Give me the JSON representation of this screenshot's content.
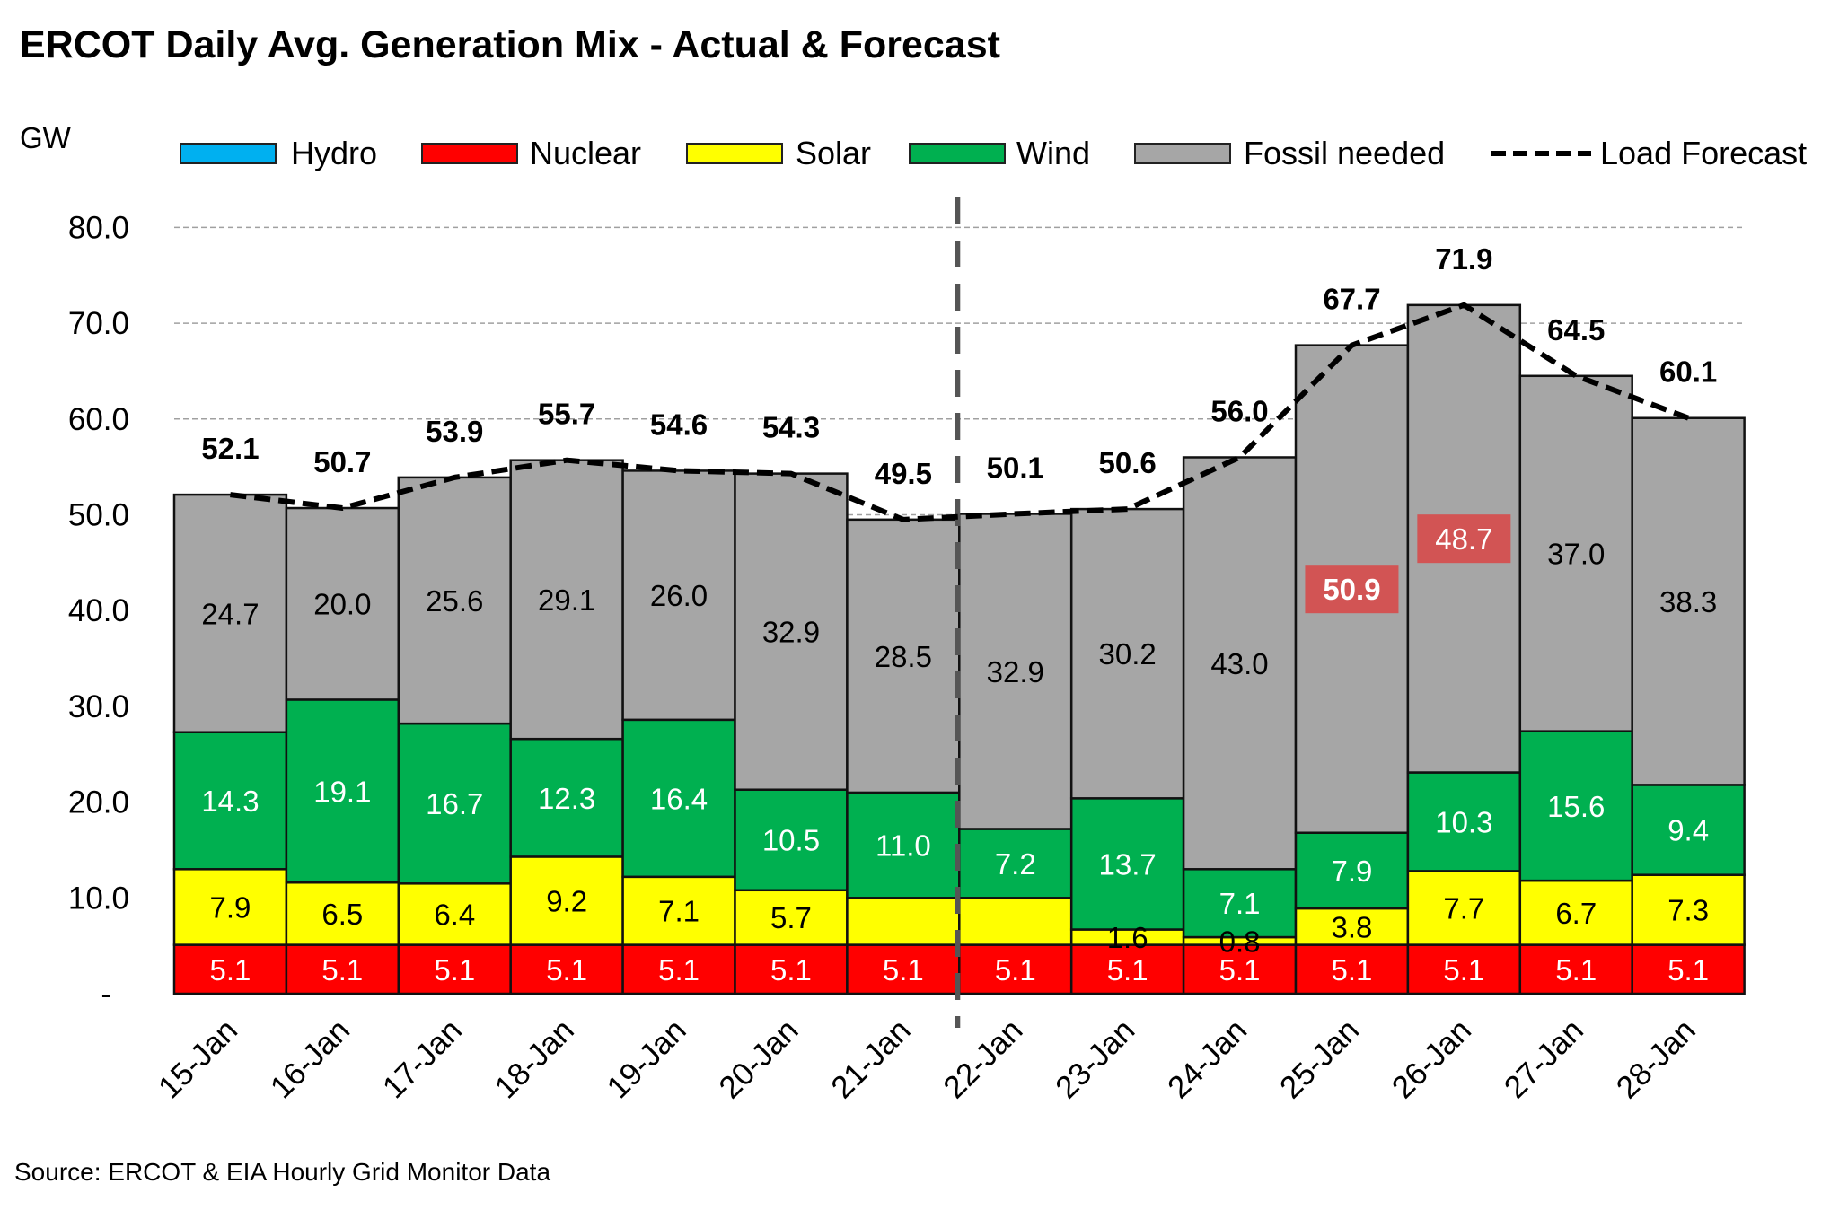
{
  "chart_data": {
    "type": "bar",
    "stacked": true,
    "title": "ERCOT Daily Avg. Generation Mix - Actual & Forecast",
    "ylabel": "GW",
    "ylim": [
      0,
      80
    ],
    "yticks": [
      "-",
      "10.0",
      "20.0",
      "30.0",
      "40.0",
      "50.0",
      "60.0",
      "70.0",
      "80.0"
    ],
    "grid": true,
    "legend_position": "top",
    "source": "Source: ERCOT & EIA Hourly Grid Monitor Data",
    "categories": [
      "15-Jan",
      "16-Jan",
      "17-Jan",
      "18-Jan",
      "19-Jan",
      "20-Jan",
      "21-Jan",
      "22-Jan",
      "23-Jan",
      "24-Jan",
      "25-Jan",
      "26-Jan",
      "27-Jan",
      "28-Jan"
    ],
    "forecast_divider_between": [
      "21-Jan",
      "22-Jan"
    ],
    "series": [
      {
        "name": "Hydro",
        "color": "#00b0f0",
        "values": null
      },
      {
        "name": "Nuclear",
        "color": "#ff0000",
        "values": [
          5.1,
          5.1,
          5.1,
          5.1,
          5.1,
          5.1,
          5.1,
          5.1,
          5.1,
          5.1,
          5.1,
          5.1,
          5.1,
          5.1
        ]
      },
      {
        "name": "Solar",
        "color": "#ffff00",
        "values": [
          7.9,
          6.5,
          6.4,
          9.2,
          7.1,
          5.7,
          null,
          null,
          1.6,
          0.8,
          3.8,
          7.7,
          6.7,
          7.3
        ]
      },
      {
        "name": "Wind",
        "color": "#00b050",
        "values": [
          14.3,
          19.1,
          16.7,
          12.3,
          16.4,
          10.5,
          11.0,
          7.2,
          13.7,
          7.1,
          7.9,
          10.3,
          15.6,
          9.4
        ]
      },
      {
        "name": "Fossil needed",
        "color": "#a6a6a6",
        "values": [
          24.7,
          20.0,
          25.6,
          29.1,
          26.0,
          32.9,
          28.5,
          32.9,
          30.2,
          43.0,
          50.9,
          48.7,
          37.0,
          38.3
        ]
      },
      {
        "name": "Load Forecast",
        "color": "#000000",
        "type": "line",
        "style": "dashed",
        "values": [
          52.1,
          50.7,
          53.9,
          55.7,
          54.6,
          54.3,
          49.5,
          50.1,
          50.6,
          56.0,
          67.7,
          71.9,
          64.5,
          60.1
        ]
      }
    ],
    "highlighted_labels": [
      {
        "category": "25-Jan",
        "series": "Fossil needed",
        "value": 50.9,
        "color": "#d25454"
      },
      {
        "category": "26-Jan",
        "series": "Fossil needed",
        "value": 48.7,
        "color": "#d25454"
      }
    ]
  }
}
